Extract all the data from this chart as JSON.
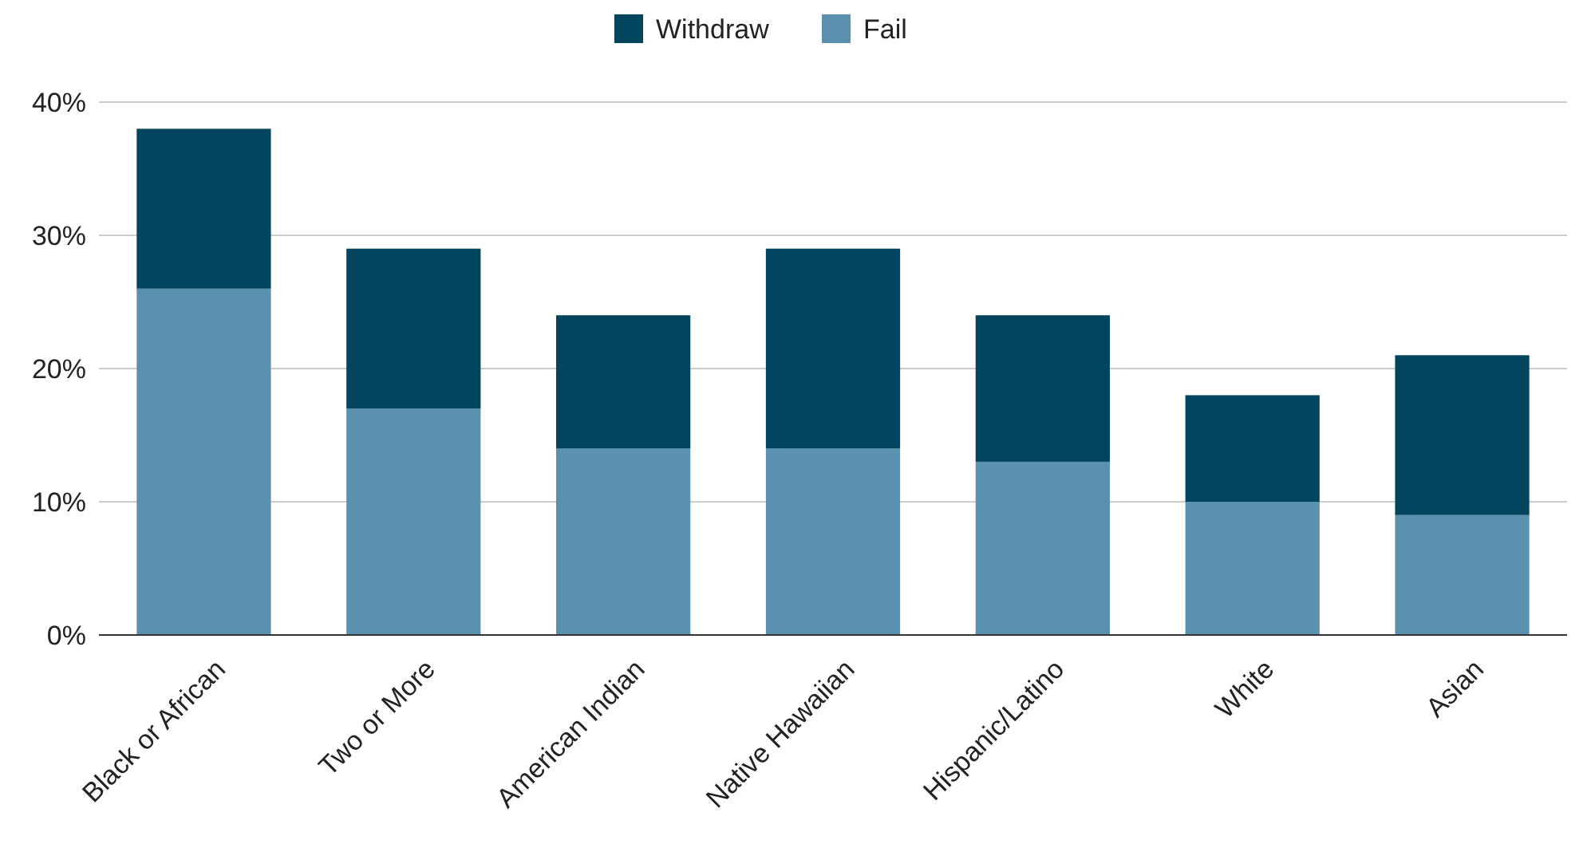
{
  "chart_data": {
    "type": "bar",
    "stacked": true,
    "categories": [
      "Black or African",
      "Two or More",
      "American Indian",
      "Native Hawaiian",
      "Hispanic/Latino",
      "White",
      "Asian"
    ],
    "series": [
      {
        "name": "Fail",
        "color": "#5a91af",
        "values": [
          26,
          17,
          14,
          14,
          13,
          10,
          9
        ]
      },
      {
        "name": "Withdraw",
        "color": "#03445e",
        "values": [
          12,
          12,
          10,
          15,
          11,
          8,
          12
        ]
      }
    ],
    "ylim": [
      0,
      40
    ],
    "yticks": [
      {
        "value": 0,
        "label": "0%"
      },
      {
        "value": 10,
        "label": "10%"
      },
      {
        "value": 20,
        "label": "20%"
      },
      {
        "value": 30,
        "label": "30%"
      },
      {
        "value": 40,
        "label": "40%"
      }
    ],
    "grid": "y",
    "legend": "top"
  }
}
